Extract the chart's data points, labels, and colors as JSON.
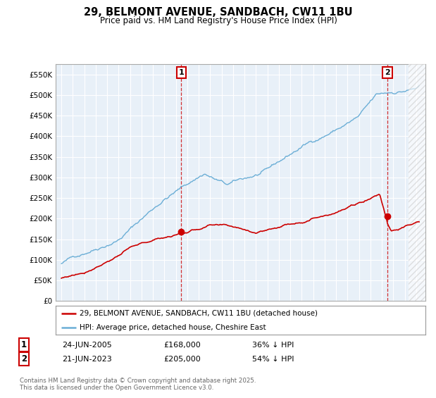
{
  "title": "29, BELMONT AVENUE, SANDBACH, CW11 1BU",
  "subtitle": "Price paid vs. HM Land Registry's House Price Index (HPI)",
  "ylim": [
    0,
    575000
  ],
  "xlim_start": 1994.5,
  "xlim_end": 2026.8,
  "yticks": [
    0,
    50000,
    100000,
    150000,
    200000,
    250000,
    300000,
    350000,
    400000,
    450000,
    500000,
    550000
  ],
  "ytick_labels": [
    "£0",
    "£50K",
    "£100K",
    "£150K",
    "£200K",
    "£250K",
    "£300K",
    "£350K",
    "£400K",
    "£450K",
    "£500K",
    "£550K"
  ],
  "hpi_color": "#6baed6",
  "price_color": "#cc0000",
  "marker1_x": 2005.48,
  "marker1_price": 168000,
  "marker1_date": "24-JUN-2005",
  "marker1_hpi_pct": "36% ↓ HPI",
  "marker2_x": 2023.47,
  "marker2_price": 205000,
  "marker2_date": "21-JUN-2023",
  "marker2_hpi_pct": "54% ↓ HPI",
  "legend_line1": "29, BELMONT AVENUE, SANDBACH, CW11 1BU (detached house)",
  "legend_line2": "HPI: Average price, detached house, Cheshire East",
  "footnote": "Contains HM Land Registry data © Crown copyright and database right 2025.\nThis data is licensed under the Open Government Licence v3.0.",
  "background_color": "#ffffff",
  "chart_bg_color": "#e8f0f8",
  "grid_color": "#ffffff",
  "hatch_color": "#cccccc"
}
